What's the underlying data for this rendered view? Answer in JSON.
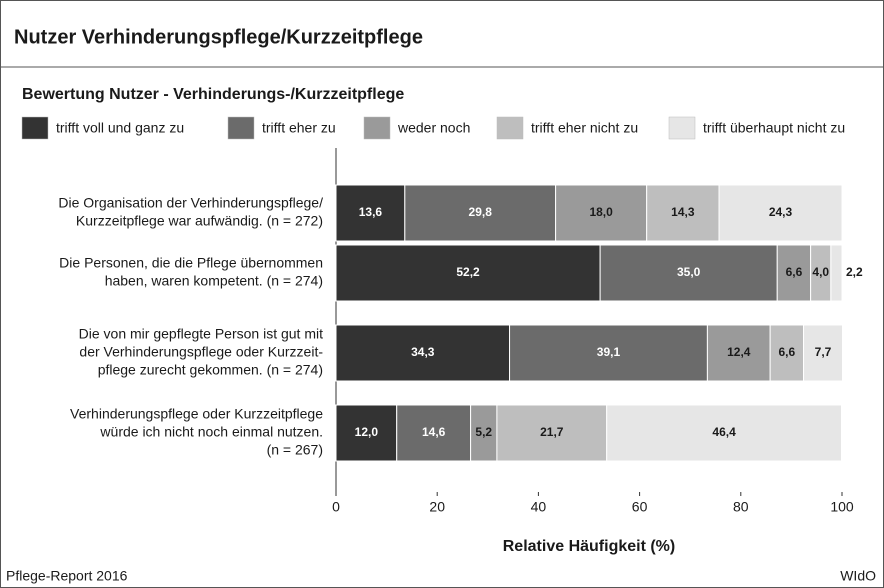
{
  "chart_data": {
    "type": "stacked-barh",
    "title": "Nutzer Verhinderungspflege/Kurzzeitpflege",
    "subtitle": "Bewertung Nutzer - Verhinderungs-/Kurzzeitpflege",
    "categories": [
      [
        "Die Organisation der Verhinderungspflege/",
        "Kurzzeitpflege war aufwändig. (n = 272)"
      ],
      [
        "Die Personen, die die Pflege übernommen",
        "haben, waren kompetent. (n = 274)"
      ],
      [
        "Die von mir gepflegte Person ist gut mit",
        "der Verhinderungspflege oder Kurzzeit-",
        "pflege zurecht gekommen. (n = 274)"
      ],
      [
        "Verhinderungspflege oder Kurzzeitpflege",
        "würde ich nicht noch einmal nutzen.",
        "(n = 267)"
      ]
    ],
    "series": [
      {
        "name": "trifft voll und ganz zu",
        "color": "#333333",
        "values": [
          13.6,
          52.2,
          34.3,
          12.0
        ],
        "value_labels": [
          "13,6",
          "52,2",
          "34,3",
          "12,0"
        ]
      },
      {
        "name": "trifft eher zu",
        "color": "#6b6b6b",
        "values": [
          29.8,
          35.0,
          39.1,
          14.6
        ],
        "value_labels": [
          "29,8",
          "35,0",
          "39,1",
          "14,6"
        ]
      },
      {
        "name": "weder noch",
        "color": "#9a9a9a",
        "values": [
          18.0,
          6.6,
          12.4,
          5.2
        ],
        "value_labels": [
          "18,0",
          "6,6",
          "12,4",
          "5,2"
        ]
      },
      {
        "name": "trifft eher nicht zu",
        "color": "#bebebe",
        "values": [
          14.3,
          4.0,
          6.6,
          21.7
        ],
        "value_labels": [
          "14,3",
          "4,0",
          "6,6",
          "21,7"
        ]
      },
      {
        "name": "trifft überhaupt nicht zu",
        "color": "#e6e6e6",
        "values": [
          24.3,
          2.2,
          7.7,
          46.4
        ],
        "value_labels": [
          "24,3",
          "2,2",
          "7,7",
          "46,4"
        ]
      }
    ],
    "xlim": [
      0,
      100
    ],
    "xticks": [
      0,
      20,
      40,
      60,
      80,
      100
    ],
    "xlabel": "Relative Häufigkeit (%)",
    "footer_left": "Pflege-Report 2016",
    "footer_right": "WIdO"
  }
}
